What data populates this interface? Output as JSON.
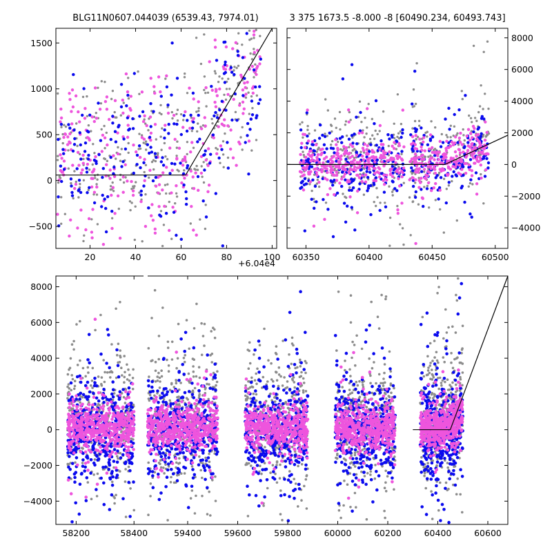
{
  "chart_data": [
    {
      "type": "scatter",
      "panel": "top-left",
      "title": "BLG11N0607.044039 (6539.43, 7974.01)",
      "xlabel": "",
      "ylabel": "",
      "x_offset_label": "+6.04e4",
      "xlim": [
        5,
        102
      ],
      "ylim": [
        -740,
        1660
      ],
      "xticks": [
        20,
        40,
        60,
        80,
        100
      ],
      "xtick_labels": [
        "20",
        "40",
        "60",
        "80",
        "100"
      ],
      "yticks": [
        -500,
        0,
        500,
        1000,
        1500
      ],
      "ytick_labels": [
        "−500",
        "0",
        "500",
        "1000",
        "1500"
      ],
      "grid": false,
      "series": [
        {
          "color": "#0a0aee",
          "kind": "points",
          "x_range": [
            5,
            95
          ],
          "y_range": [
            -740,
            1660
          ],
          "note": "dense flux band near 0"
        },
        {
          "color": "#ee55dd",
          "kind": "points",
          "x_range": [
            5,
            95
          ],
          "y_range": [
            -740,
            1660
          ]
        },
        {
          "color": "#8c8c8c",
          "kind": "points",
          "x_range": [
            5,
            95
          ],
          "y_range": [
            -740,
            1660
          ]
        },
        {
          "color": "#000000",
          "kind": "model-line",
          "x": [
            5,
            62,
            100
          ],
          "y": [
            60,
            60,
            1660
          ]
        }
      ]
    },
    {
      "type": "scatter",
      "panel": "top-right",
      "title": "3 375 1673.5 -8.000 -8 [60490.234, 60493.743]",
      "xlabel": "",
      "ylabel": "",
      "xlim": [
        60335,
        60510
      ],
      "ylim": [
        -5300,
        8600
      ],
      "xticks": [
        60350,
        60400,
        60450,
        60500
      ],
      "xtick_labels": [
        "60350",
        "60400",
        "60450",
        "60500"
      ],
      "yticks": [
        -4000,
        -2000,
        0,
        2000,
        4000,
        6000,
        8000
      ],
      "ytick_labels": [
        "−4000",
        "−2000",
        "0",
        "2000",
        "4000",
        "6000",
        "8000"
      ],
      "y_axis_side": "right",
      "grid": false,
      "series": [
        {
          "color": "#0a0aee",
          "kind": "points",
          "x_range": [
            60345,
            60495
          ],
          "y_range": [
            -5300,
            8600
          ]
        },
        {
          "color": "#ee55dd",
          "kind": "points",
          "x_range": [
            60345,
            60495
          ],
          "y_range": [
            -3000,
            5000
          ]
        },
        {
          "color": "#8c8c8c",
          "kind": "points",
          "x_range": [
            60345,
            60495
          ],
          "y_range": [
            -5300,
            6000
          ]
        },
        {
          "color": "#000000",
          "kind": "model-line",
          "x": [
            60335,
            60460,
            60510
          ],
          "y": [
            0,
            0,
            1850
          ]
        }
      ]
    },
    {
      "type": "scatter",
      "panel": "bottom",
      "title": "",
      "xlabel": "",
      "ylabel": "",
      "xlim": [
        58130,
        60680
      ],
      "ylim": [
        -5300,
        8600
      ],
      "xticks": [
        58200,
        58400,
        59400,
        59600,
        59800,
        60000,
        60200,
        60400,
        60600
      ],
      "xtick_labels": [
        "58200",
        "58400",
        "59400",
        "59600",
        "59800",
        "60000",
        "60200",
        "60400",
        "60600"
      ],
      "yticks": [
        -4000,
        -2000,
        0,
        2000,
        4000,
        6000,
        8000
      ],
      "ytick_labels": [
        "−4000",
        "−2000",
        "0",
        "2000",
        "4000",
        "6000",
        "8000"
      ],
      "broken_x_axis": true,
      "grid": false,
      "seasons": [
        [
          58170,
          58400
        ],
        [
          59240,
          59520
        ],
        [
          59630,
          59880
        ],
        [
          59990,
          60230
        ],
        [
          60330,
          60500
        ]
      ],
      "series": [
        {
          "color": "#0a0aee",
          "kind": "points"
        },
        {
          "color": "#ee55dd",
          "kind": "points"
        },
        {
          "color": "#8c8c8c",
          "kind": "points"
        },
        {
          "color": "#000000",
          "kind": "model-line",
          "x": [
            60300,
            60450,
            60680
          ],
          "y": [
            0,
            0,
            8600
          ]
        }
      ]
    }
  ]
}
